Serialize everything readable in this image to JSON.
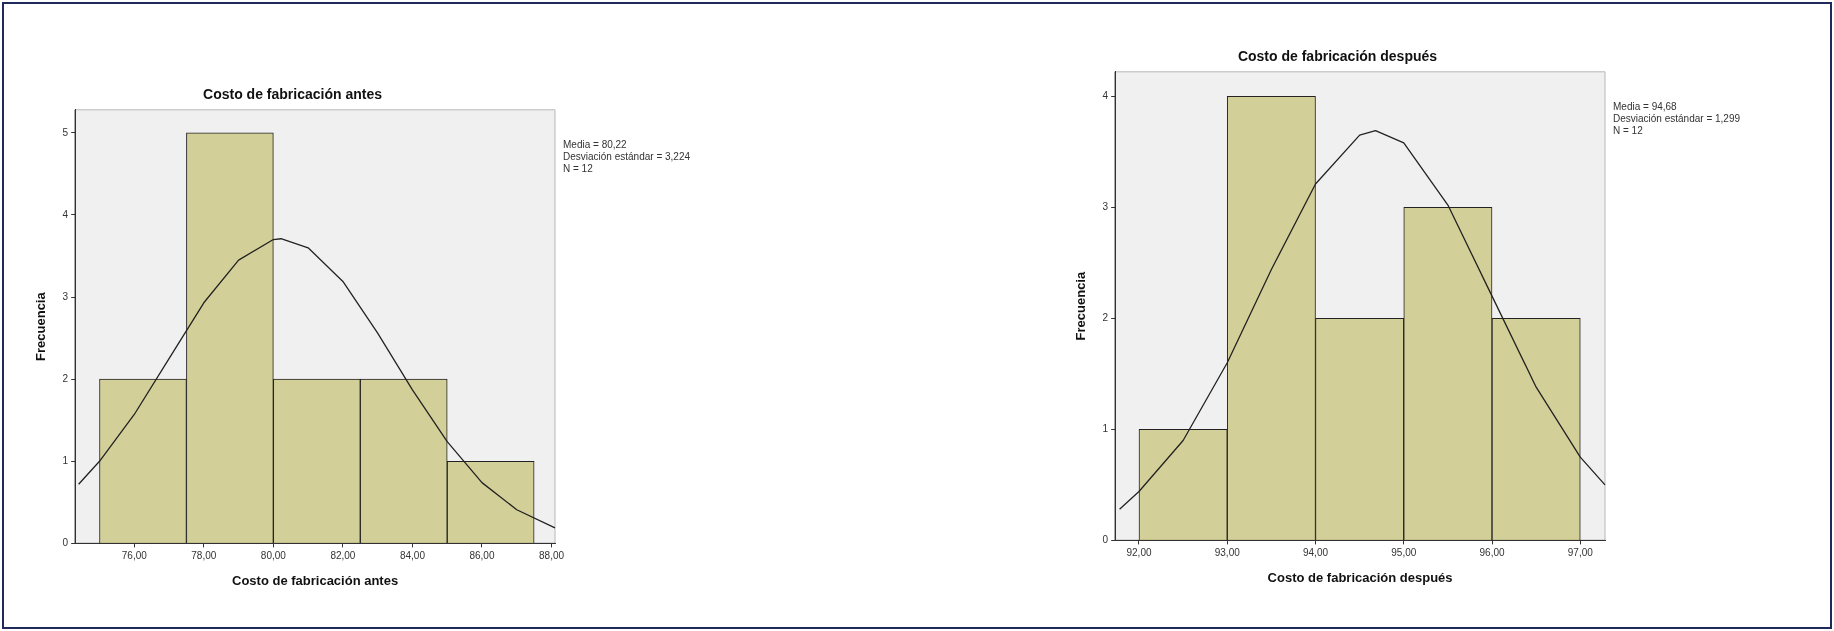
{
  "chart_data": [
    {
      "type": "histogram",
      "title": "Costo de fabricación antes",
      "xlabel": "Costo de fabricación antes",
      "ylabel": "Frecuencia",
      "bins": [
        75,
        77.5,
        80,
        82.5,
        85,
        87.5
      ],
      "values": [
        2,
        5,
        2,
        2,
        1
      ],
      "color": "#d3cf98",
      "xlim": [
        74.3,
        88.1
      ],
      "xticks": [
        {
          "value": 76,
          "label": "76,00"
        },
        {
          "value": 78,
          "label": "78,00"
        },
        {
          "value": 80,
          "label": "80,00"
        },
        {
          "value": 82,
          "label": "82,00"
        },
        {
          "value": 84,
          "label": "84,00"
        },
        {
          "value": 86,
          "label": "86,00"
        },
        {
          "value": 88,
          "label": "88,00"
        }
      ],
      "ylim": [
        0,
        5.28
      ],
      "yticks": [
        0,
        1,
        2,
        3,
        4,
        5
      ],
      "annotations": [
        "Media = 80,22",
        "Desviación estándar = 3,224",
        "N = 12"
      ],
      "series": [
        {
          "type": "line",
          "color": "#222222",
          "x": [
            74.4,
            75,
            76,
            77,
            78,
            79,
            80,
            80.22,
            81,
            82,
            83,
            84,
            85,
            86,
            87,
            88.1
          ],
          "values": [
            0.72,
            1.0,
            1.57,
            2.25,
            2.93,
            3.45,
            3.7,
            3.71,
            3.6,
            3.19,
            2.56,
            1.87,
            1.24,
            0.74,
            0.41,
            0.19
          ]
        }
      ]
    },
    {
      "type": "histogram",
      "title": "Costo de fabricación después",
      "xlabel": "Costo de fabricación después",
      "ylabel": "Frecuencia",
      "bins": [
        92,
        93,
        94,
        95,
        96,
        97
      ],
      "values": [
        1,
        4,
        2,
        3,
        2
      ],
      "color": "#d3cf98",
      "xlim": [
        91.73,
        97.28
      ],
      "xticks": [
        {
          "value": 92,
          "label": "92,00"
        },
        {
          "value": 93,
          "label": "93,00"
        },
        {
          "value": 94,
          "label": "94,00"
        },
        {
          "value": 95,
          "label": "95,00"
        },
        {
          "value": 96,
          "label": "96,00"
        },
        {
          "value": 97,
          "label": "97,00"
        }
      ],
      "ylim": [
        0,
        4.22
      ],
      "yticks": [
        0,
        1,
        2,
        3,
        4
      ],
      "annotations": [
        "Media = 94,68",
        "Desviación estándar = 1,299",
        "N = 12"
      ],
      "series": [
        {
          "type": "line",
          "color": "#222222",
          "x": [
            91.78,
            92,
            92.5,
            93,
            93.5,
            94,
            94.5,
            94.68,
            95,
            95.5,
            96,
            96.5,
            97,
            97.28
          ],
          "values": [
            0.28,
            0.44,
            0.9,
            1.6,
            2.44,
            3.21,
            3.65,
            3.69,
            3.58,
            3.02,
            2.2,
            1.38,
            0.75,
            0.5
          ]
        }
      ]
    }
  ]
}
